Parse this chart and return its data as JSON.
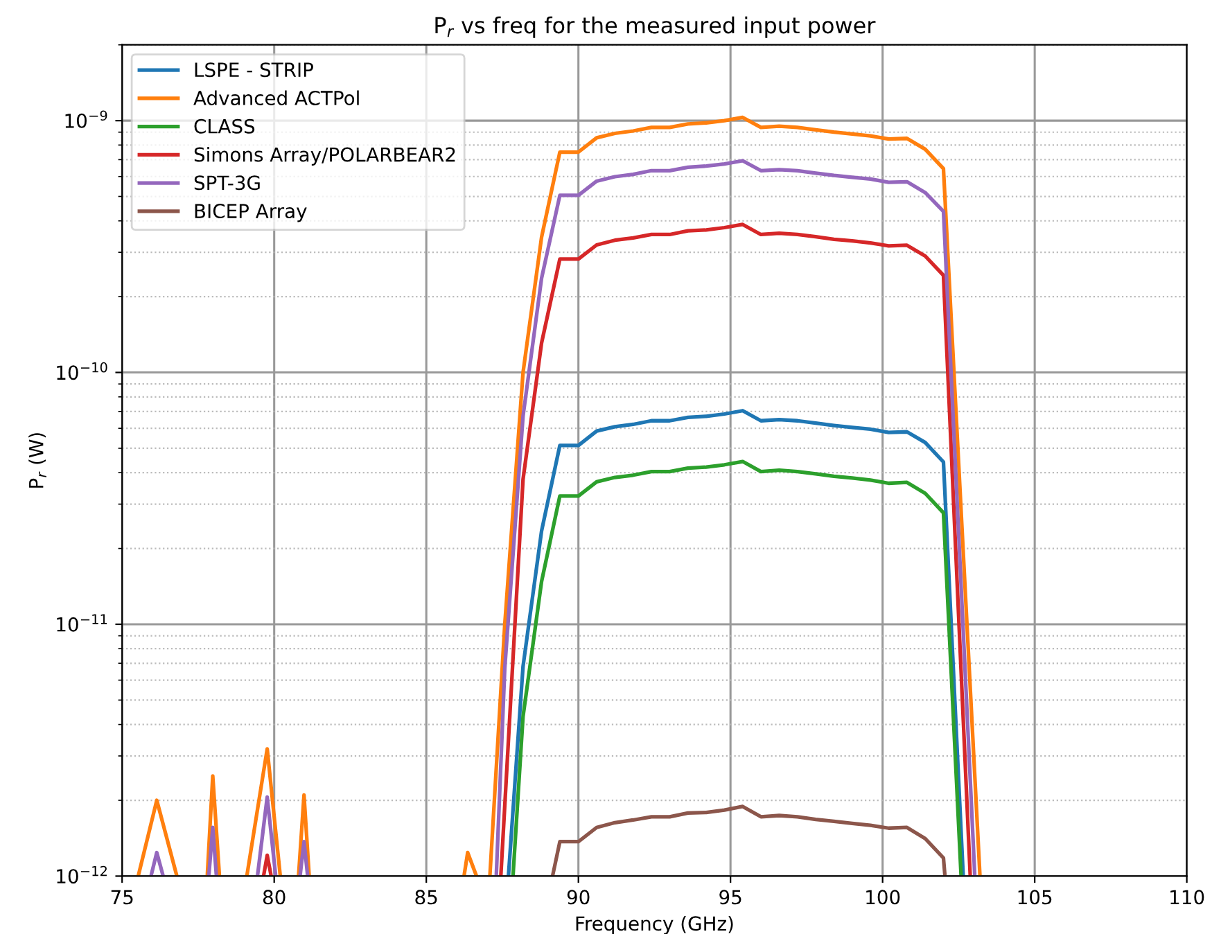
{
  "chart_data": {
    "type": "line",
    "title": "P$_{r}$ vs freq for the measured input power",
    "xlabel": "Frequency (GHz)",
    "ylabel": "P$_{r}$ (W)",
    "xlim": [
      75,
      110
    ],
    "xticks": [
      75,
      80,
      85,
      90,
      95,
      100,
      105,
      110
    ],
    "ylim": [
      1e-12,
      2e-09
    ],
    "yticks": [
      {
        "value": 1e-12,
        "label": "10$^{−12}$"
      },
      {
        "value": 1e-11,
        "label": "10$^{−11}$"
      },
      {
        "value": 1e-10,
        "label": "10$^{−10}$"
      },
      {
        "value": 1e-09,
        "label": "10$^{−9}$"
      }
    ],
    "log": "y",
    "grid": true,
    "legend": "top left",
    "line_style": "solid",
    "series": [
      {
        "name": "LSPE - STRIP",
        "color": "#1f77b4",
        "x": [
          87.7,
          88.18,
          88.79,
          89.39,
          90.0,
          90.6,
          91.2,
          91.8,
          92.4,
          93.0,
          93.6,
          94.2,
          94.8,
          95.4,
          96.0,
          96.6,
          97.2,
          97.8,
          98.4,
          99.0,
          99.6,
          100.2,
          100.8,
          101.4,
          102.0,
          102.65
        ],
        "values": [
          1e-12,
          6.8e-12,
          2.35e-11,
          5.13e-11,
          5.13e-11,
          5.85e-11,
          6.09e-11,
          6.22e-11,
          6.43e-11,
          6.43e-11,
          6.63e-11,
          6.7e-11,
          6.84e-11,
          7.05e-11,
          6.43e-11,
          6.5e-11,
          6.43e-11,
          6.29e-11,
          6.16e-11,
          6.05e-11,
          5.95e-11,
          5.78e-11,
          5.81e-11,
          5.27e-11,
          4.41e-11,
          1e-12
        ]
      },
      {
        "name": "Advanced ACTPol",
        "color": "#ff7f0e",
        "x": [
          75.53,
          76.14,
          76.8,
          77.3,
          77.8,
          77.98,
          78.2,
          78.6,
          79.1,
          79.77,
          80.2,
          80.5,
          80.8,
          80.98,
          81.15,
          83.0,
          86.24,
          86.36,
          86.65,
          86.9,
          87.09,
          87.58,
          88.18,
          88.79,
          89.39,
          90.0,
          90.6,
          91.2,
          91.8,
          92.4,
          93.0,
          93.6,
          94.2,
          94.8,
          95.4,
          96.0,
          96.6,
          97.2,
          97.8,
          98.4,
          99.0,
          99.6,
          100.2,
          100.8,
          101.4,
          102.0,
          103.2
        ],
        "values": [
          1e-12,
          2e-12,
          1e-12,
          null,
          1e-12,
          2.5e-12,
          1e-12,
          null,
          1e-12,
          3.2e-12,
          1e-12,
          null,
          1e-12,
          2.1e-12,
          1e-12,
          null,
          1e-12,
          1.24e-12,
          1e-12,
          null,
          1e-12,
          1e-11,
          1e-10,
          3.45e-10,
          7.5e-10,
          7.5e-10,
          8.55e-10,
          8.9e-10,
          9.1e-10,
          9.4e-10,
          9.4e-10,
          9.7e-10,
          9.8e-10,
          1e-09,
          1.03e-09,
          9.4e-10,
          9.5e-10,
          9.4e-10,
          9.2e-10,
          9e-10,
          8.85e-10,
          8.7e-10,
          8.45e-10,
          8.5e-10,
          7.7e-10,
          6.45e-10,
          1e-12
        ]
      },
      {
        "name": "CLASS",
        "color": "#2ca02c",
        "x": [
          87.85,
          88.18,
          88.79,
          89.39,
          90.0,
          90.6,
          91.2,
          91.8,
          92.4,
          93.0,
          93.6,
          94.2,
          94.8,
          95.4,
          96.0,
          96.6,
          97.2,
          97.8,
          98.4,
          99.0,
          99.6,
          100.2,
          100.8,
          101.4,
          102.0,
          102.58
        ],
        "values": [
          1e-12,
          4.3e-12,
          1.48e-11,
          3.23e-11,
          3.23e-11,
          3.68e-11,
          3.83e-11,
          3.91e-11,
          4.04e-11,
          4.04e-11,
          4.17e-11,
          4.21e-11,
          4.3e-11,
          4.43e-11,
          4.04e-11,
          4.09e-11,
          4.04e-11,
          3.96e-11,
          3.87e-11,
          3.81e-11,
          3.74e-11,
          3.63e-11,
          3.66e-11,
          3.31e-11,
          2.77e-11,
          1e-12
        ]
      },
      {
        "name": "Simons Array/POLARBEAR2",
        "color": "#d62728",
        "x": [
          79.65,
          79.77,
          79.9,
          83.0,
          87.45,
          88.18,
          88.79,
          89.39,
          90.0,
          90.6,
          91.2,
          91.8,
          92.4,
          93.0,
          93.6,
          94.2,
          94.8,
          95.4,
          96.0,
          96.6,
          97.2,
          97.8,
          98.4,
          99.0,
          99.6,
          100.2,
          100.8,
          101.4,
          102.0,
          102.88
        ],
        "values": [
          1e-12,
          1.21e-12,
          1e-12,
          null,
          1e-12,
          3.76e-11,
          1.31e-10,
          2.82e-10,
          2.82e-10,
          3.21e-10,
          3.35e-10,
          3.42e-10,
          3.53e-10,
          3.53e-10,
          3.65e-10,
          3.68e-10,
          3.76e-10,
          3.87e-10,
          3.53e-10,
          3.57e-10,
          3.53e-10,
          3.46e-10,
          3.38e-10,
          3.33e-10,
          3.27e-10,
          3.18e-10,
          3.2e-10,
          2.9e-10,
          2.43e-10,
          1e-12
        ]
      },
      {
        "name": "SPT-3G",
        "color": "#9467bd",
        "x": [
          75.95,
          76.14,
          76.35,
          77.1,
          77.85,
          77.98,
          78.1,
          78.8,
          79.45,
          79.77,
          80.05,
          80.5,
          80.85,
          80.98,
          81.1,
          84.0,
          87.3,
          87.58,
          88.18,
          88.79,
          89.39,
          90.0,
          90.6,
          91.2,
          91.8,
          92.4,
          93.0,
          93.6,
          94.2,
          94.8,
          95.4,
          96.0,
          96.6,
          97.2,
          97.8,
          98.4,
          99.0,
          99.6,
          100.2,
          100.8,
          101.4,
          102.0,
          103.03
        ],
        "values": [
          1e-12,
          1.24e-12,
          1e-12,
          null,
          1e-12,
          1.56e-12,
          1e-12,
          null,
          1e-12,
          2.06e-12,
          1e-12,
          null,
          1e-12,
          1.37e-12,
          1e-12,
          null,
          1e-12,
          6.7e-12,
          6.7e-11,
          2.37e-10,
          5.05e-10,
          5.05e-10,
          5.75e-10,
          5.99e-10,
          6.12e-10,
          6.33e-10,
          6.33e-10,
          6.53e-10,
          6.6e-10,
          6.73e-10,
          6.93e-10,
          6.33e-10,
          6.39e-10,
          6.33e-10,
          6.19e-10,
          6.06e-10,
          5.96e-10,
          5.86e-10,
          5.69e-10,
          5.72e-10,
          5.18e-10,
          4.36e-10,
          1e-12
        ]
      },
      {
        "name": "BICEP Array",
        "color": "#8c564b",
        "x": [
          89.15,
          89.39,
          90.0,
          90.6,
          91.2,
          91.8,
          92.4,
          93.0,
          93.6,
          94.2,
          94.8,
          95.4,
          96.0,
          96.6,
          97.2,
          97.8,
          98.4,
          99.0,
          99.6,
          100.2,
          100.8,
          101.4,
          102.0,
          102.05
        ],
        "values": [
          1e-12,
          1.37e-12,
          1.37e-12,
          1.56e-12,
          1.63e-12,
          1.67e-12,
          1.72e-12,
          1.72e-12,
          1.78e-12,
          1.79e-12,
          1.83e-12,
          1.89e-12,
          1.72e-12,
          1.74e-12,
          1.72e-12,
          1.68e-12,
          1.65e-12,
          1.62e-12,
          1.59e-12,
          1.55e-12,
          1.56e-12,
          1.41e-12,
          1.18e-12,
          1e-12
        ]
      }
    ]
  }
}
